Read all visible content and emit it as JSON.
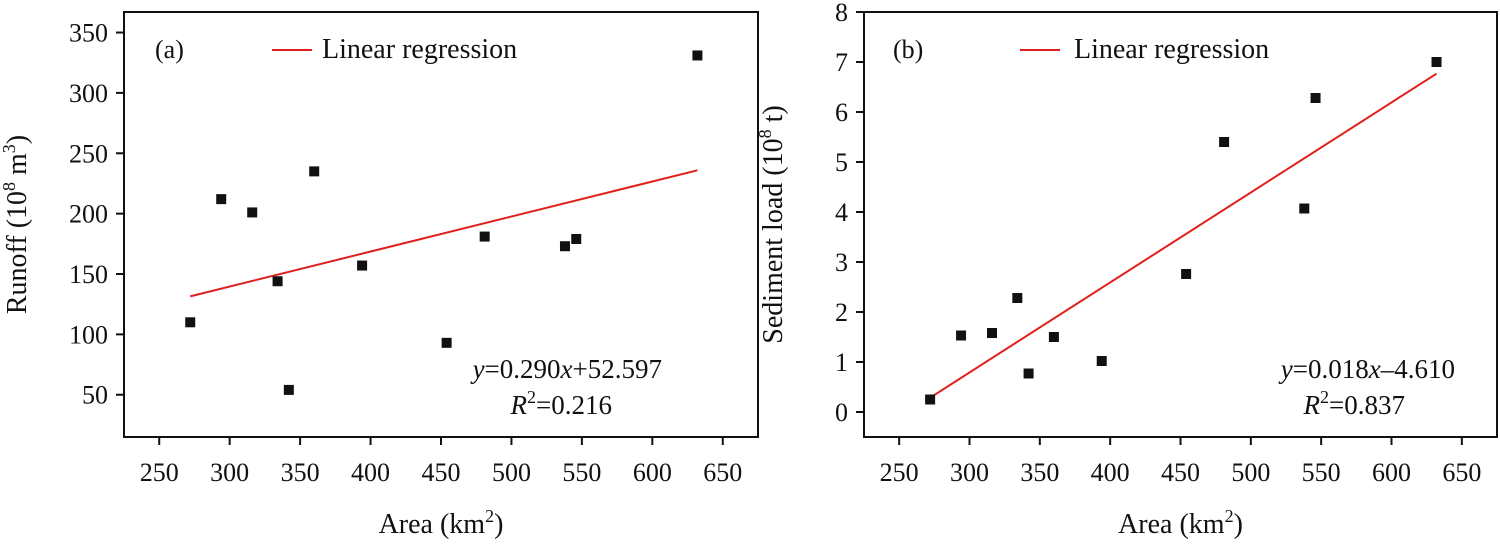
{
  "chart_data": [
    {
      "type": "scatter",
      "panel_label": "(a)",
      "legend": {
        "label": "Linear regression",
        "placement": "top-center"
      },
      "xlabel_main": "Area (km",
      "xlabel_sup": "2",
      "xlabel_end": ")",
      "ylabel_main": "Runoff (10",
      "ylabel_sup1": "8",
      "ylabel_mid": " m",
      "ylabel_sup2": "3",
      "ylabel_end": ")",
      "xlim": [
        225,
        675
      ],
      "ylim": [
        15,
        367
      ],
      "x_ticks": [
        250,
        300,
        350,
        400,
        450,
        500,
        550,
        600,
        650
      ],
      "y_ticks": [
        50,
        100,
        150,
        200,
        250,
        300,
        350
      ],
      "points": [
        {
          "x": 272,
          "y": 110
        },
        {
          "x": 294,
          "y": 212
        },
        {
          "x": 316,
          "y": 201
        },
        {
          "x": 334,
          "y": 144
        },
        {
          "x": 342,
          "y": 54
        },
        {
          "x": 360,
          "y": 235
        },
        {
          "x": 394,
          "y": 157
        },
        {
          "x": 454,
          "y": 93
        },
        {
          "x": 481,
          "y": 181
        },
        {
          "x": 538,
          "y": 173
        },
        {
          "x": 546,
          "y": 179
        },
        {
          "x": 632,
          "y": 331
        }
      ],
      "regression": {
        "slope": 0.29,
        "intercept": 52.597,
        "x_range": [
          272,
          632
        ],
        "color": "#e0201b"
      },
      "equation": {
        "y_var": "y",
        "y_body": "=0.290",
        "x_var": "x",
        "y_tail": "+52.597",
        "r_var": "R",
        "r_sup": "2",
        "r_body": "=0.216"
      }
    },
    {
      "type": "scatter",
      "panel_label": "(b)",
      "legend": {
        "label": "Linear regression",
        "placement": "top-center"
      },
      "xlabel_main": "Area (km",
      "xlabel_sup": "2",
      "xlabel_end": ")",
      "ylabel_main": "Sediment load (10",
      "ylabel_sup1": "8",
      "ylabel_mid": " t",
      "ylabel_sup2": "",
      "ylabel_end": ")",
      "xlim": [
        225,
        675
      ],
      "ylim": [
        -0.5,
        8
      ],
      "x_ticks": [
        250,
        300,
        350,
        400,
        450,
        500,
        550,
        600,
        650
      ],
      "y_ticks": [
        0,
        1,
        2,
        3,
        4,
        5,
        6,
        7,
        8
      ],
      "points": [
        {
          "x": 272,
          "y": 0.25
        },
        {
          "x": 294,
          "y": 1.53
        },
        {
          "x": 316,
          "y": 1.58
        },
        {
          "x": 334,
          "y": 2.28
        },
        {
          "x": 342,
          "y": 0.77
        },
        {
          "x": 360,
          "y": 1.5
        },
        {
          "x": 394,
          "y": 1.02
        },
        {
          "x": 454,
          "y": 2.76
        },
        {
          "x": 481,
          "y": 5.4
        },
        {
          "x": 538,
          "y": 4.07
        },
        {
          "x": 546,
          "y": 6.28
        },
        {
          "x": 632,
          "y": 7.0
        }
      ],
      "regression": {
        "slope": 0.018,
        "intercept": -4.61,
        "x_range": [
          272,
          632
        ],
        "color": "#e0201b"
      },
      "equation": {
        "y_var": "y",
        "y_body": "=0.018",
        "x_var": "x",
        "y_tail": "–4.610",
        "r_var": "R",
        "r_sup": "2",
        "r_body": "=0.837"
      }
    }
  ]
}
